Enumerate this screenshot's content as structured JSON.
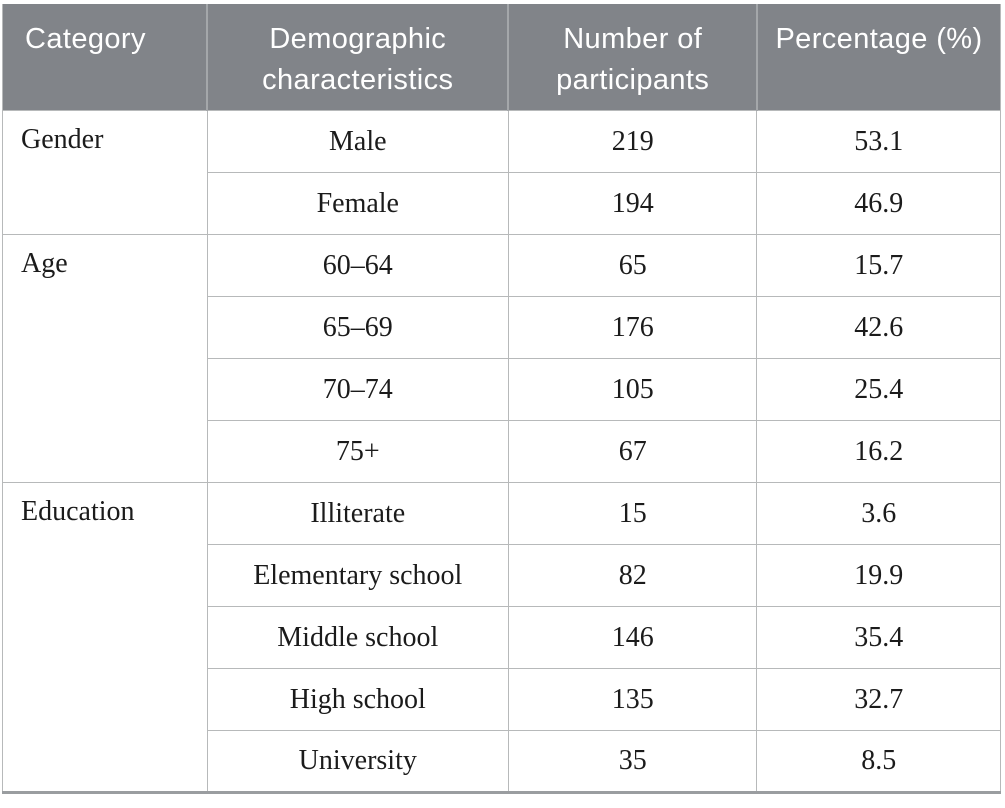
{
  "colors": {
    "header_bg": "#818489",
    "header_text": "#ffffff",
    "grid_line": "#b7b9ba",
    "header_cell_divider": "#a4a7aa",
    "bottom_border": "#9a9da0",
    "body_text": "#1b1b1b",
    "page_bg": "#ffffff"
  },
  "chart_data": {
    "type": "table",
    "title": "",
    "columns": [
      "Category",
      "Demographic characteristics",
      "Number of participants",
      "Percentage (%)"
    ],
    "groups": [
      {
        "category": "Gender",
        "rows": [
          {
            "characteristic": "Male",
            "participants": 219,
            "percentage": "53.1"
          },
          {
            "characteristic": "Female",
            "participants": 194,
            "percentage": "46.9"
          }
        ]
      },
      {
        "category": "Age",
        "rows": [
          {
            "characteristic": "60–64",
            "participants": 65,
            "percentage": "15.7"
          },
          {
            "characteristic": "65–69",
            "participants": 176,
            "percentage": "42.6"
          },
          {
            "characteristic": "70–74",
            "participants": 105,
            "percentage": "25.4"
          },
          {
            "characteristic": "75+",
            "participants": 67,
            "percentage": "16.2"
          }
        ]
      },
      {
        "category": "Education",
        "rows": [
          {
            "characteristic": "Illiterate",
            "participants": 15,
            "percentage": "3.6"
          },
          {
            "characteristic": "Elementary school",
            "participants": 82,
            "percentage": "19.9"
          },
          {
            "characteristic": "Middle school",
            "participants": 146,
            "percentage": "35.4"
          },
          {
            "characteristic": "High school",
            "participants": 135,
            "percentage": "32.7"
          },
          {
            "characteristic": "University",
            "participants": 35,
            "percentage": "8.5"
          }
        ]
      }
    ]
  }
}
